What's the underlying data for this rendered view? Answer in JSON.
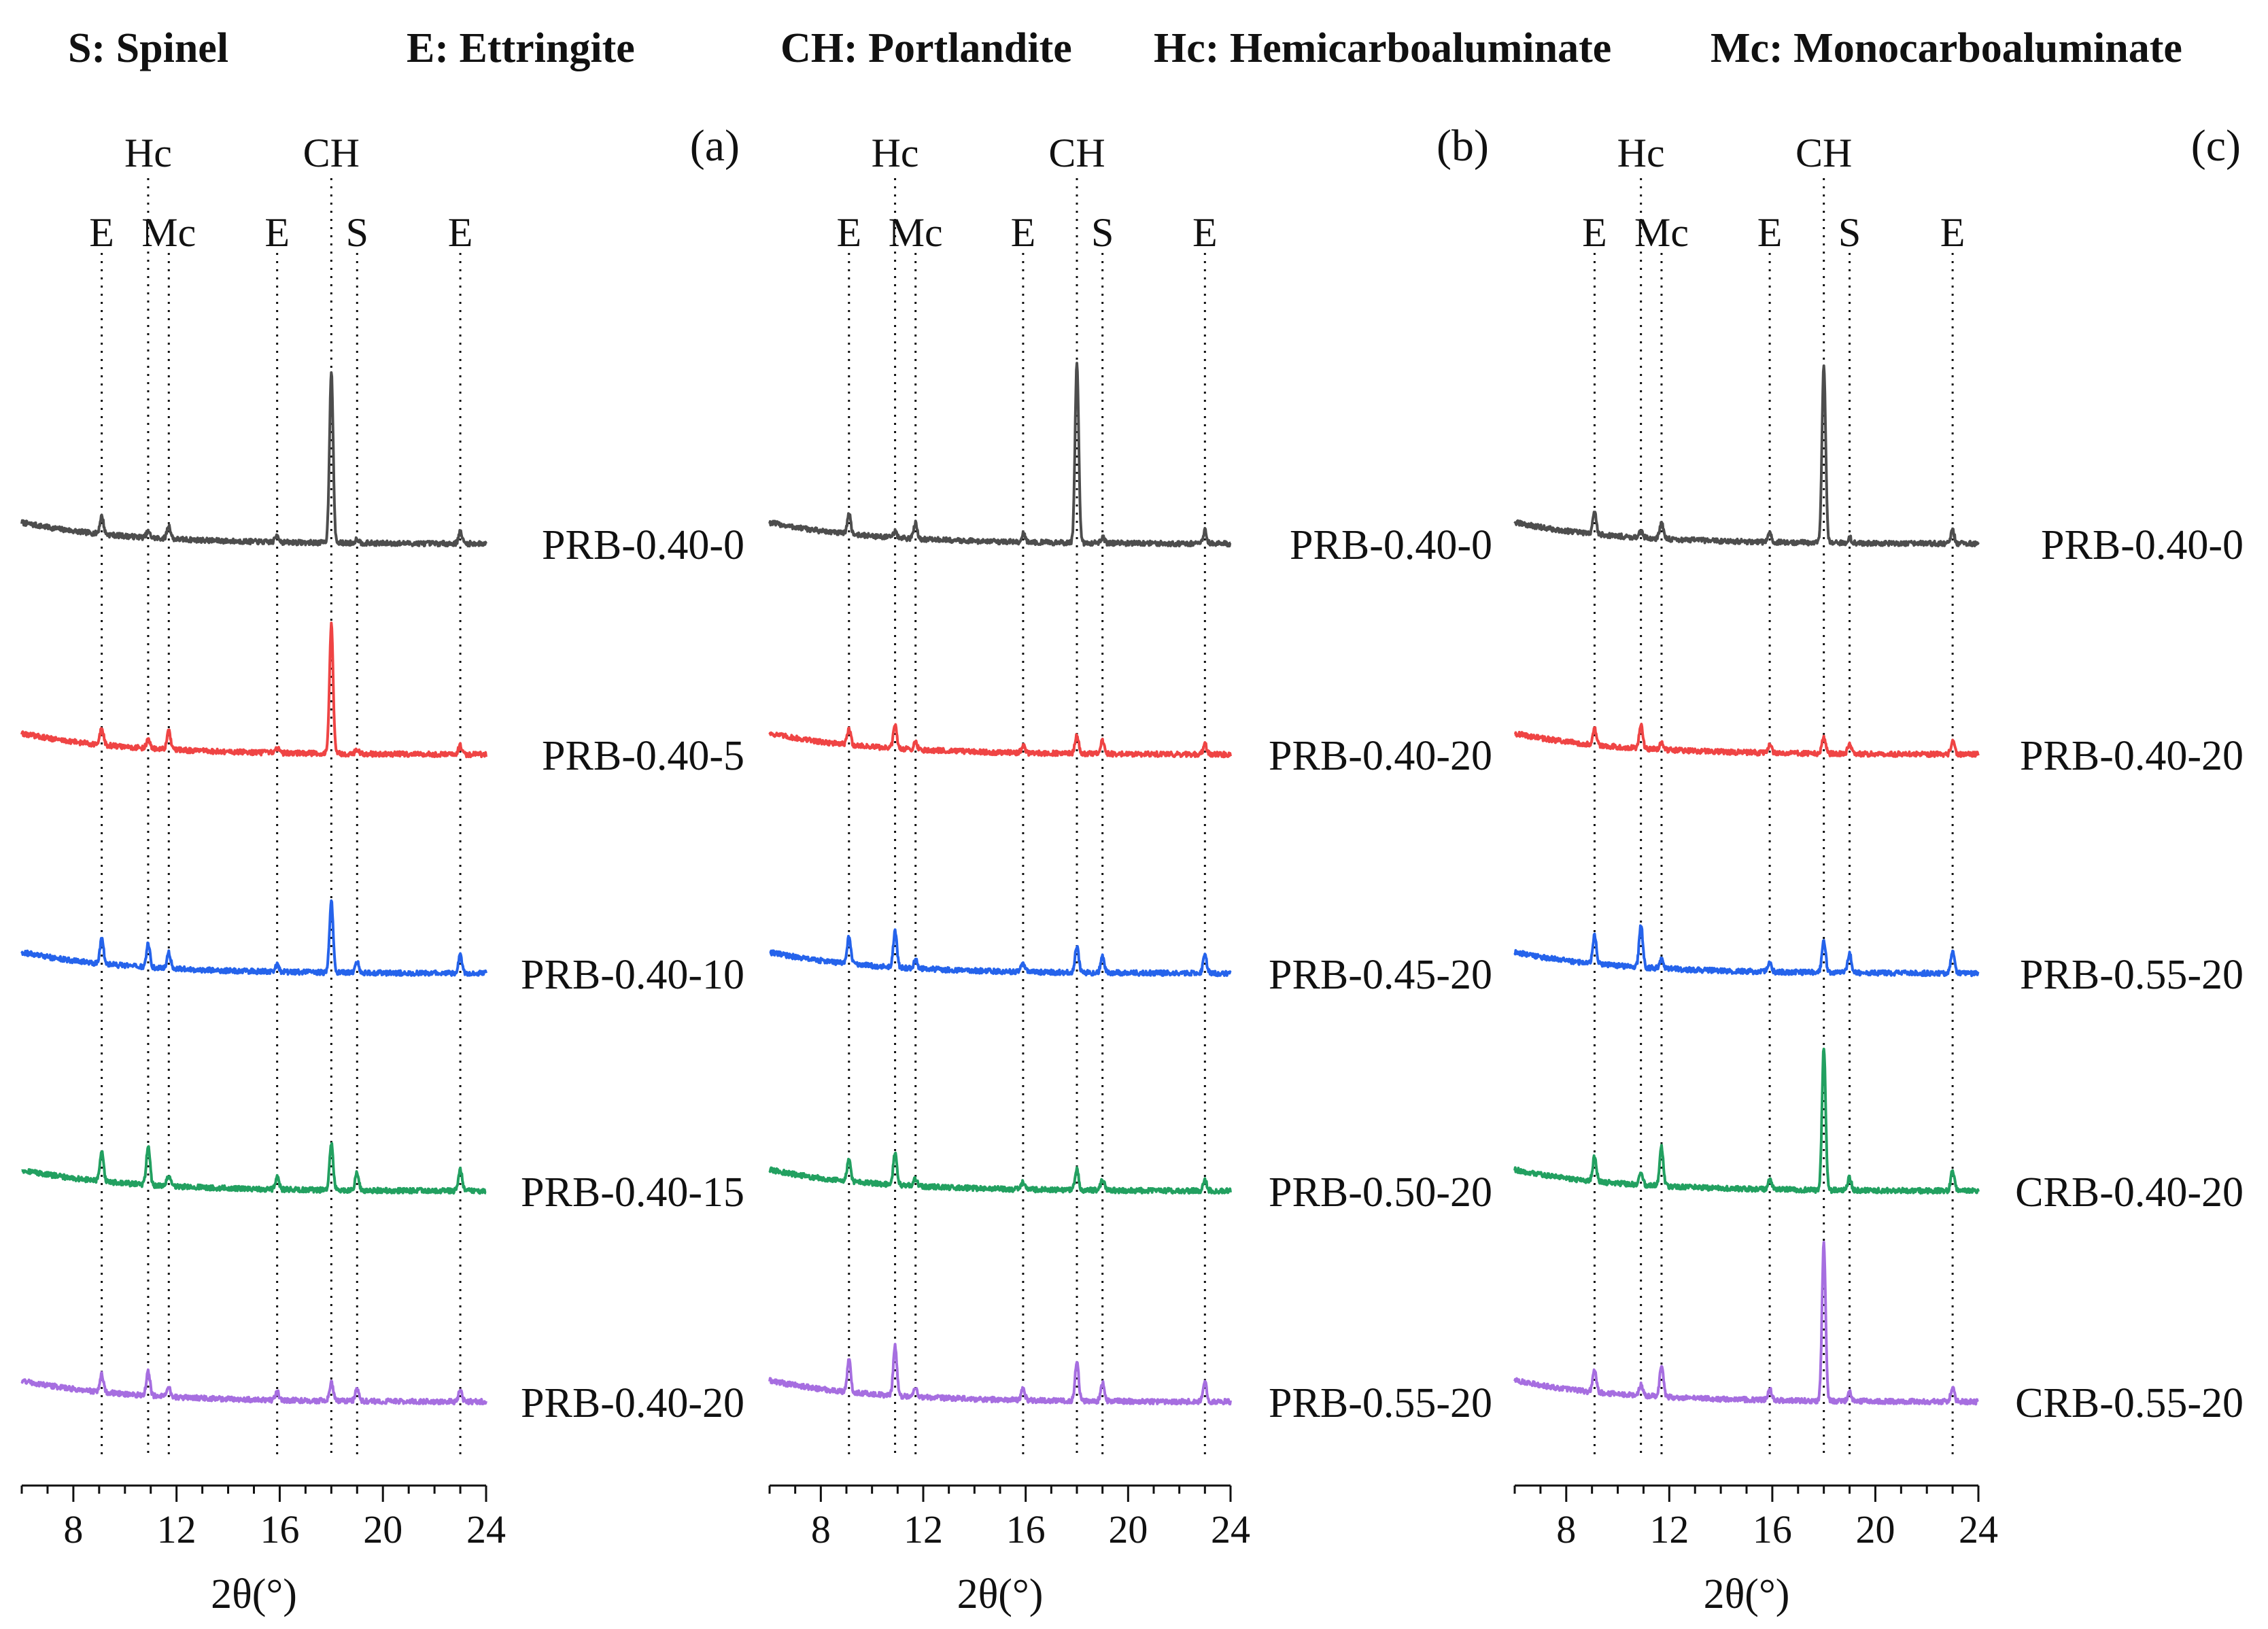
{
  "legend": [
    {
      "abbr": "S",
      "name": "Spinel",
      "text": "S: Spinel"
    },
    {
      "abbr": "E",
      "name": "Ettringite",
      "text": "E: Ettringite"
    },
    {
      "abbr": "CH",
      "name": "Portlandite",
      "text": "CH: Portlandite"
    },
    {
      "abbr": "Hc",
      "name": "Hemicarboaluminate",
      "text": "Hc: Hemicarboaluminate"
    },
    {
      "abbr": "Mc",
      "name": "Monocarboaluminate",
      "text": "Mc: Monocarboaluminate"
    }
  ],
  "colors": {
    "series": [
      "#4d4d4d",
      "#ef4444",
      "#2563eb",
      "#22a060",
      "#a66ee0"
    ],
    "axis": "#111111",
    "ref_line": "#111111"
  },
  "chart_data": [
    {
      "type": "line",
      "panel_label": "(a)",
      "xlabel": "2θ(°)",
      "xlim": [
        6,
        24
      ],
      "x_ticks": [
        8,
        12,
        16,
        20,
        24
      ],
      "peak_markers": [
        {
          "label": "E",
          "x": 9.1,
          "row": 2
        },
        {
          "label": "Hc",
          "x": 10.9,
          "row": 1
        },
        {
          "label": "Mc",
          "x": 11.7,
          "row": 2
        },
        {
          "label": "E",
          "x": 15.9,
          "row": 2
        },
        {
          "label": "CH",
          "x": 18.0,
          "row": 1
        },
        {
          "label": "S",
          "x": 19.0,
          "row": 2
        },
        {
          "label": "E",
          "x": 23.0,
          "row": 2
        }
      ],
      "series": [
        {
          "name": "PRB-0.40-0",
          "color_index": 0,
          "peaks": {
            "9.1": 25,
            "10.9": 8,
            "11.7": 18,
            "15.9": 10,
            "18.0": 240,
            "19.0": 6,
            "23.0": 16
          }
        },
        {
          "name": "PRB-0.40-5",
          "color_index": 1,
          "peaks": {
            "9.1": 22,
            "10.9": 12,
            "11.7": 25,
            "15.9": 7,
            "18.0": 180,
            "19.0": 6,
            "23.0": 12
          }
        },
        {
          "name": "PRB-0.40-10",
          "color_index": 2,
          "peaks": {
            "9.1": 35,
            "10.9": 32,
            "11.7": 22,
            "15.9": 10,
            "18.0": 100,
            "19.0": 16,
            "23.0": 25
          }
        },
        {
          "name": "PRB-0.40-15",
          "color_index": 3,
          "peaks": {
            "9.1": 40,
            "10.9": 55,
            "11.7": 15,
            "15.9": 18,
            "18.0": 65,
            "19.0": 25,
            "23.0": 30
          }
        },
        {
          "name": "PRB-0.40-20",
          "color_index": 4,
          "peaks": {
            "9.1": 25,
            "10.9": 35,
            "11.7": 12,
            "15.9": 12,
            "18.0": 25,
            "19.0": 18,
            "23.0": 15
          }
        }
      ]
    },
    {
      "type": "line",
      "panel_label": "(b)",
      "xlabel": "2θ(°)",
      "xlim": [
        6,
        24
      ],
      "x_ticks": [
        8,
        12,
        16,
        20,
        24
      ],
      "peak_markers": [
        {
          "label": "E",
          "x": 9.1,
          "row": 2
        },
        {
          "label": "Hc",
          "x": 10.9,
          "row": 1
        },
        {
          "label": "Mc",
          "x": 11.7,
          "row": 2
        },
        {
          "label": "E",
          "x": 15.9,
          "row": 2
        },
        {
          "label": "CH",
          "x": 18.0,
          "row": 1
        },
        {
          "label": "S",
          "x": 19.0,
          "row": 2
        },
        {
          "label": "E",
          "x": 23.0,
          "row": 2
        }
      ],
      "series": [
        {
          "name": "PRB-0.40-0",
          "color_index": 0,
          "peaks": {
            "9.1": 28,
            "10.9": 8,
            "11.7": 22,
            "15.9": 12,
            "18.0": 250,
            "19.0": 8,
            "23.0": 18
          }
        },
        {
          "name": "PRB-0.40-20",
          "color_index": 1,
          "peaks": {
            "9.1": 22,
            "10.9": 32,
            "11.7": 10,
            "15.9": 10,
            "18.0": 25,
            "19.0": 18,
            "23.0": 14
          }
        },
        {
          "name": "PRB-0.45-20",
          "color_index": 2,
          "peaks": {
            "9.1": 38,
            "10.9": 50,
            "11.7": 12,
            "15.9": 12,
            "18.0": 38,
            "19.0": 22,
            "23.0": 25
          }
        },
        {
          "name": "PRB-0.50-20",
          "color_index": 3,
          "peaks": {
            "9.1": 30,
            "10.9": 45,
            "11.7": 10,
            "15.9": 10,
            "18.0": 30,
            "19.0": 16,
            "23.0": 16
          }
        },
        {
          "name": "PRB-0.55-20",
          "color_index": 4,
          "peaks": {
            "9.1": 45,
            "10.9": 70,
            "11.7": 12,
            "15.9": 16,
            "18.0": 55,
            "19.0": 25,
            "23.0": 28
          }
        }
      ]
    },
    {
      "type": "line",
      "panel_label": "(c)",
      "xlabel": "2θ(°)",
      "xlim": [
        6,
        24
      ],
      "x_ticks": [
        8,
        12,
        16,
        20,
        24
      ],
      "peak_markers": [
        {
          "label": "E",
          "x": 9.1,
          "row": 2
        },
        {
          "label": "Hc",
          "x": 10.9,
          "row": 1
        },
        {
          "label": "Mc",
          "x": 11.7,
          "row": 2
        },
        {
          "label": "E",
          "x": 15.9,
          "row": 2
        },
        {
          "label": "CH",
          "x": 18.0,
          "row": 1
        },
        {
          "label": "S",
          "x": 19.0,
          "row": 2
        },
        {
          "label": "E",
          "x": 23.0,
          "row": 2
        }
      ],
      "series": [
        {
          "name": "PRB-0.40-0",
          "color_index": 0,
          "peaks": {
            "9.1": 30,
            "10.9": 8,
            "11.7": 22,
            "15.9": 12,
            "18.0": 250,
            "19.0": 8,
            "23.0": 18
          }
        },
        {
          "name": "PRB-0.40-20",
          "color_index": 1,
          "peaks": {
            "9.1": 22,
            "10.9": 32,
            "11.7": 10,
            "15.9": 12,
            "18.0": 22,
            "19.0": 15,
            "23.0": 18
          }
        },
        {
          "name": "PRB-0.55-20",
          "color_index": 2,
          "peaks": {
            "9.1": 40,
            "10.9": 60,
            "11.7": 12,
            "15.9": 14,
            "18.0": 45,
            "19.0": 28,
            "23.0": 30
          }
        },
        {
          "name": "CRB-0.40-20",
          "color_index": 3,
          "peaks": {
            "9.1": 35,
            "10.9": 15,
            "11.7": 55,
            "15.9": 14,
            "18.0": 200,
            "19.0": 18,
            "23.0": 28
          }
        },
        {
          "name": "CRB-0.55-20",
          "color_index": 4,
          "peaks": {
            "9.1": 30,
            "10.9": 15,
            "11.7": 45,
            "15.9": 16,
            "18.0": 220,
            "19.0": 12,
            "23.0": 20
          }
        }
      ]
    }
  ]
}
